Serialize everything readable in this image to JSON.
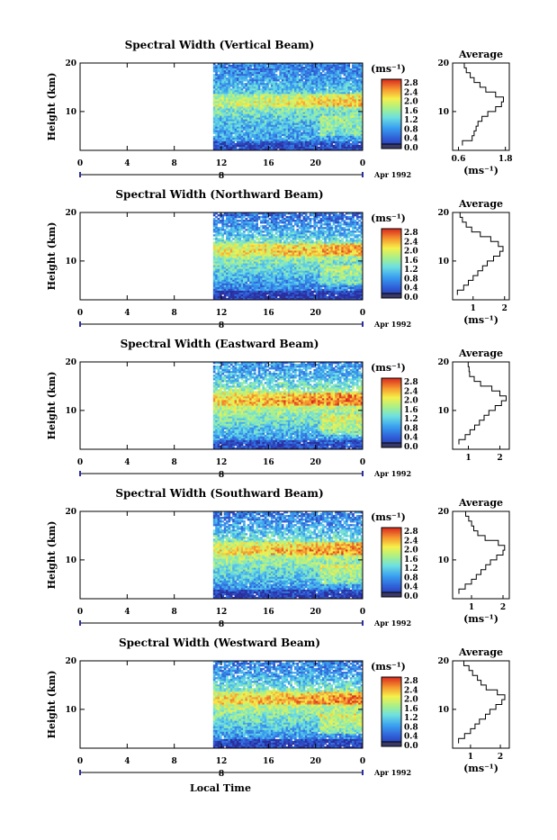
{
  "figure": {
    "xlabel": "Local Time",
    "date_label": "Apr 1992",
    "day_label": "8",
    "x_ticks": [
      "0",
      "4",
      "8",
      "12",
      "16",
      "20",
      "0"
    ],
    "y_ticks": [
      "20",
      "10"
    ],
    "ylabel": "Height (km)",
    "colorbar_unit": "(ms⁻¹)",
    "colorbar_ticks": [
      "2.8",
      "2.4",
      "2.0",
      "1.6",
      "1.2",
      "0.8",
      "0.4",
      "0.0"
    ],
    "avg_title": "Average",
    "avg_unit": "(ms⁻¹)",
    "avg_y_ticks": [
      "20",
      "10"
    ]
  },
  "chart_data": [
    {
      "type": "heatmap",
      "title": "Spectral Width (Vertical Beam)",
      "xlabel": "Local Time",
      "ylabel": "Height (km)",
      "xlim": [
        0,
        24
      ],
      "ylim": [
        2,
        20
      ],
      "data_start_hour": 11.3,
      "colorbar_range": [
        0,
        3.0
      ],
      "profile": {
        "title": "Average",
        "xlabel": "(ms⁻¹)",
        "x_ticks": [
          "0.6",
          "1.8"
        ],
        "x_tick_values": [
          0.6,
          1.8
        ],
        "xlim": [
          0.45,
          1.9
        ],
        "heights": [
          3,
          4,
          5,
          6,
          7,
          8,
          9,
          10,
          11,
          12,
          13,
          14,
          15,
          16,
          17,
          18,
          19,
          20
        ],
        "values": [
          0.7,
          0.95,
          1.0,
          1.05,
          1.1,
          1.2,
          1.35,
          1.55,
          1.7,
          1.75,
          1.55,
          1.3,
          1.15,
          1.0,
          0.9,
          0.8,
          0.75,
          0.7
        ]
      }
    },
    {
      "type": "heatmap",
      "title": "Spectral Width (Northward Beam)",
      "xlabel": "Local Time",
      "ylabel": "Height (km)",
      "xlim": [
        0,
        24
      ],
      "ylim": [
        2,
        20
      ],
      "data_start_hour": 11.3,
      "colorbar_range": [
        0,
        3.0
      ],
      "profile": {
        "title": "Average",
        "xlabel": "(ms⁻¹)",
        "x_ticks": [
          "1",
          "2"
        ],
        "x_tick_values": [
          1,
          2
        ],
        "xlim": [
          0.35,
          2.15
        ],
        "heights": [
          3,
          4,
          5,
          6,
          7,
          8,
          9,
          10,
          11,
          12,
          13,
          14,
          15,
          16,
          17,
          18,
          19,
          20
        ],
        "values": [
          0.5,
          0.7,
          0.85,
          1.0,
          1.15,
          1.3,
          1.45,
          1.65,
          1.85,
          1.95,
          1.8,
          1.5,
          1.25,
          1.05,
          0.9,
          0.75,
          0.6,
          0.55
        ]
      }
    },
    {
      "type": "heatmap",
      "title": "Spectral Width (Eastward Beam)",
      "xlabel": "Local Time",
      "ylabel": "Height (km)",
      "xlim": [
        0,
        24
      ],
      "ylim": [
        2,
        20
      ],
      "data_start_hour": 11.3,
      "colorbar_range": [
        0,
        3.0
      ],
      "profile": {
        "title": "Average",
        "xlabel": "",
        "x_ticks": [
          "1",
          "2"
        ],
        "x_tick_values": [
          1,
          2
        ],
        "xlim": [
          0.5,
          2.3
        ],
        "heights": [
          3,
          4,
          5,
          6,
          7,
          8,
          9,
          10,
          11,
          12,
          13,
          14,
          15,
          16,
          17,
          18,
          19,
          20
        ],
        "values": [
          0.7,
          0.9,
          1.05,
          1.2,
          1.35,
          1.5,
          1.65,
          1.85,
          2.05,
          2.2,
          2.0,
          1.8,
          1.5,
          1.3,
          1.1,
          1.0,
          0.9,
          0.8
        ]
      }
    },
    {
      "type": "heatmap",
      "title": "Spectral Width (Southward Beam)",
      "xlabel": "Local Time",
      "ylabel": "Height (km)",
      "xlim": [
        0,
        24
      ],
      "ylim": [
        2,
        20
      ],
      "data_start_hour": 11.3,
      "colorbar_range": [
        0,
        3.0
      ],
      "profile": {
        "title": "Average",
        "xlabel": "(ms⁻¹)",
        "x_ticks": [
          "1",
          "2"
        ],
        "x_tick_values": [
          1,
          2
        ],
        "xlim": [
          0.4,
          2.2
        ],
        "heights": [
          3,
          4,
          5,
          6,
          7,
          8,
          9,
          10,
          11,
          12,
          13,
          14,
          15,
          16,
          17,
          18,
          19,
          20
        ],
        "values": [
          0.6,
          0.8,
          1.0,
          1.15,
          1.3,
          1.45,
          1.6,
          1.8,
          2.0,
          2.05,
          1.85,
          1.55,
          1.3,
          1.1,
          0.95,
          0.8,
          0.7,
          0.65
        ]
      }
    },
    {
      "type": "heatmap",
      "title": "Spectral Width (Westward Beam)",
      "xlabel": "Local Time",
      "ylabel": "Height (km)",
      "xlim": [
        0,
        24
      ],
      "ylim": [
        2,
        20
      ],
      "data_start_hour": 11.3,
      "colorbar_range": [
        0,
        3.0
      ],
      "profile": {
        "title": "Average",
        "xlabel": "(ms⁻¹)",
        "x_ticks": [
          "1",
          "2"
        ],
        "x_tick_values": [
          1,
          2
        ],
        "xlim": [
          0.4,
          2.3
        ],
        "heights": [
          3,
          4,
          5,
          6,
          7,
          8,
          9,
          10,
          11,
          12,
          13,
          14,
          15,
          16,
          17,
          18,
          19,
          20
        ],
        "values": [
          0.6,
          0.8,
          1.0,
          1.15,
          1.3,
          1.5,
          1.65,
          1.85,
          2.05,
          2.15,
          1.9,
          1.6,
          1.35,
          1.15,
          0.95,
          0.85,
          0.75,
          0.7
        ]
      }
    }
  ]
}
